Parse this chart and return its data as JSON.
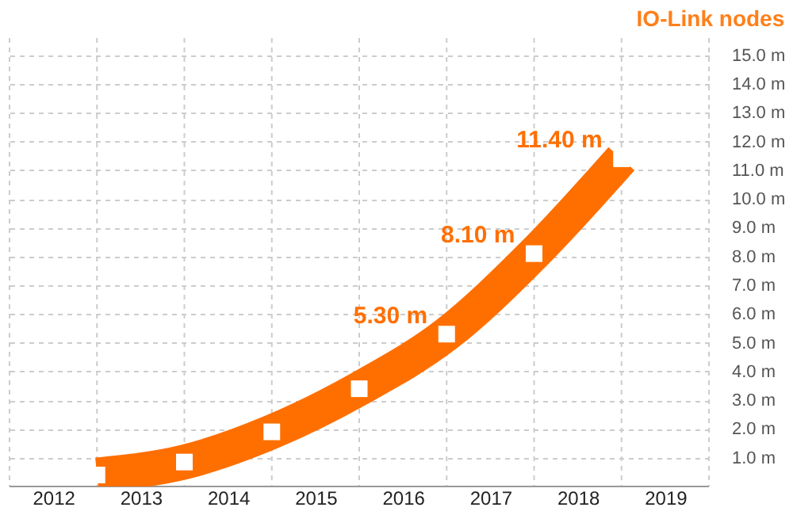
{
  "chart_data": {
    "type": "scatter",
    "title": "IO-Link nodes",
    "x": [
      2013,
      2014,
      2015,
      2016,
      2017,
      2018,
      2019
    ],
    "series": [
      {
        "type": "line",
        "color": "#ff6f00",
        "values": [
          0.4,
          0.85,
          1.9,
          3.4,
          5.3,
          8.1,
          11.4
        ]
      },
      {
        "marker": "square",
        "color": "#ffffff",
        "values": [
          0.4,
          0.85,
          1.9,
          3.4,
          5.3,
          8.1,
          11.4
        ],
        "value_labels": [
          null,
          null,
          null,
          null,
          "5.30 m",
          "8.10 m",
          "11.40 m"
        ]
      }
    ],
    "xlim": [
      2012,
      2020
    ],
    "xticks": [
      {
        "value": 2012.5,
        "label": "2012"
      },
      {
        "value": 2013.5,
        "label": "2013"
      },
      {
        "value": 2014.5,
        "label": "2014"
      },
      {
        "value": 2015.5,
        "label": "2015"
      },
      {
        "value": 2016.5,
        "label": "2016"
      },
      {
        "value": 2017.5,
        "label": "2017"
      },
      {
        "value": 2018.5,
        "label": "2018"
      },
      {
        "value": 2019.5,
        "label": "2019"
      }
    ],
    "ylim": [
      0,
      15.6
    ],
    "yticks": [
      {
        "value": 1,
        "label": "1.0 m"
      },
      {
        "value": 2,
        "label": "2.0 m"
      },
      {
        "value": 3,
        "label": "3.0 m"
      },
      {
        "value": 4,
        "label": "4.0 m"
      },
      {
        "value": 5,
        "label": "5.0 m"
      },
      {
        "value": 6,
        "label": "6.0 m"
      },
      {
        "value": 7,
        "label": "7.0 m"
      },
      {
        "value": 8,
        "label": "8.0 m"
      },
      {
        "value": 9,
        "label": "9.0 m"
      },
      {
        "value": 10,
        "label": "10.0 m"
      },
      {
        "value": 11,
        "label": "11.0 m"
      },
      {
        "value": 12,
        "label": "12.0 m"
      },
      {
        "value": 13,
        "label": "13.0 m"
      },
      {
        "value": 14,
        "label": "14.0 m"
      },
      {
        "value": 15,
        "label": "15.0 m"
      }
    ],
    "grid": true
  }
}
